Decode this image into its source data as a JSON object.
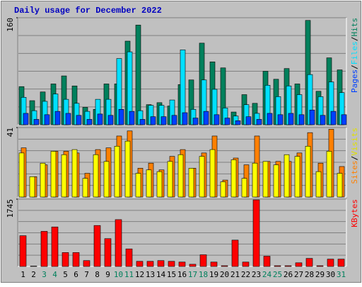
{
  "title": "Daily usage for December 2022",
  "separator": "/",
  "categories": [
    "1",
    "2",
    "3",
    "4",
    "5",
    "6",
    "7",
    "8",
    "9",
    "10",
    "11",
    "12",
    "13",
    "14",
    "15",
    "16",
    "17",
    "18",
    "19",
    "20",
    "21",
    "22",
    "23",
    "24",
    "25",
    "26",
    "27",
    "28",
    "29",
    "30",
    "31"
  ],
  "label_colors": [
    "#000000",
    "#000000",
    "#00805c",
    "#00805c",
    "#000000",
    "#000000",
    "#000000",
    "#000000",
    "#000000",
    "#00805c",
    "#00805c",
    "#000000",
    "#000000",
    "#000000",
    "#000000",
    "#000000",
    "#00805c",
    "#00805c",
    "#000000",
    "#000000",
    "#000000",
    "#000000",
    "#000000",
    "#00805c",
    "#00805c",
    "#000000",
    "#000000",
    "#000000",
    "#000000",
    "#000000",
    "#00805c"
  ],
  "chart_data": [
    {
      "type": "bar",
      "ylim": [
        0,
        160
      ],
      "yticks": [
        160
      ],
      "series": [
        {
          "name": "Pages",
          "color": "#0040ff",
          "values": [
            17,
            8,
            15,
            20,
            17,
            14,
            8,
            16,
            14,
            23,
            20,
            8,
            12,
            12,
            14,
            18,
            10,
            20,
            15,
            10,
            6,
            12,
            8,
            17,
            15,
            17,
            15,
            22,
            14,
            20,
            15
          ]
        },
        {
          "name": "Files",
          "color": "#00e0ff",
          "values": [
            41,
            21,
            35,
            46,
            38,
            32,
            20,
            38,
            38,
            99,
            109,
            21,
            29,
            29,
            37,
            112,
            23,
            67,
            53,
            25,
            13,
            30,
            17,
            59,
            42,
            58,
            45,
            75,
            42,
            64,
            48
          ]
        },
        {
          "name": "Hits",
          "color": "#00805c",
          "values": [
            57,
            36,
            49,
            61,
            73,
            58,
            26,
            23,
            61,
            61,
            125,
            149,
            30,
            33,
            28,
            60,
            67,
            122,
            94,
            85,
            19,
            45,
            32,
            80,
            68,
            84,
            61,
            156,
            50,
            100,
            82
          ]
        }
      ]
    },
    {
      "type": "bar",
      "ylim": [
        0,
        41
      ],
      "yticks": [
        41
      ],
      "series": [
        {
          "name": "Sites",
          "color": "#ff8000",
          "values": [
            29,
            12,
            19,
            27,
            27,
            26,
            14,
            28,
            29,
            36,
            39,
            17,
            20,
            16,
            24,
            28,
            17,
            26,
            36,
            10,
            23,
            19,
            36,
            21,
            21,
            21,
            26,
            38,
            20,
            40,
            18
          ]
        },
        {
          "name": "Visits",
          "color": "#ffff00",
          "values": [
            26,
            12,
            20,
            27,
            25,
            28,
            11,
            25,
            21,
            30,
            33,
            14,
            16,
            15,
            21,
            25,
            17,
            24,
            28,
            9,
            22,
            11,
            20,
            21,
            19,
            25,
            24,
            30,
            15,
            27,
            14
          ]
        }
      ]
    },
    {
      "type": "bar",
      "ylim": [
        0,
        1745
      ],
      "yticks": [
        1745
      ],
      "series": [
        {
          "name": "KBytes",
          "color": "#ff0000",
          "values": [
            797,
            10,
            910,
            1024,
            360,
            360,
            152,
            1062,
            721,
            1214,
            455,
            133,
            133,
            152,
            133,
            114,
            57,
            303,
            114,
            19,
            683,
            114,
            1726,
            266,
            19,
            19,
            95,
            209,
            19,
            190,
            190
          ]
        }
      ]
    }
  ]
}
